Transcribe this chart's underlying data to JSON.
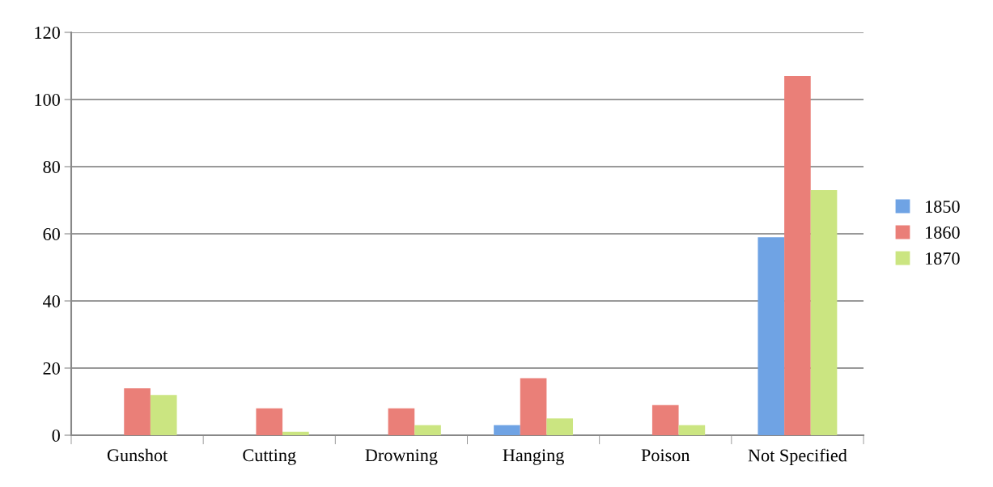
{
  "chart_data": {
    "type": "bar",
    "categories": [
      "Gunshot",
      "Cutting",
      "Drowning",
      "Hanging",
      "Poison",
      "Not Specified"
    ],
    "series": [
      {
        "name": "1850",
        "color": "#6fa3e4",
        "values": [
          0,
          0,
          0,
          3,
          0,
          59
        ]
      },
      {
        "name": "1860",
        "color": "#ea7f78",
        "values": [
          14,
          8,
          8,
          17,
          9,
          107
        ]
      },
      {
        "name": "1870",
        "color": "#cbe581",
        "values": [
          12,
          1,
          3,
          5,
          3,
          73
        ]
      }
    ],
    "ylim": [
      0,
      120
    ],
    "yticks": [
      0,
      20,
      40,
      60,
      80,
      100,
      120
    ],
    "grid": "y",
    "legend": "right"
  }
}
